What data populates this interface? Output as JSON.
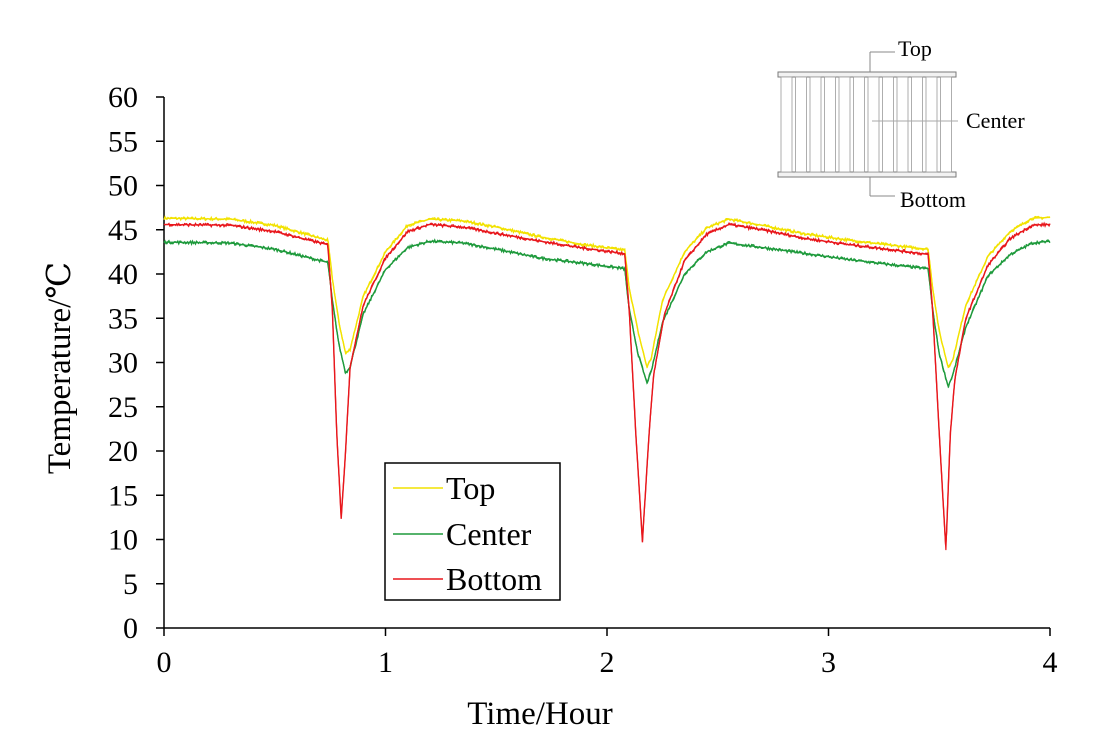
{
  "chart_data": {
    "type": "line",
    "title": "",
    "xlabel": "Time/Hour",
    "ylabel": "Temperature/℃",
    "xlim": [
      0,
      4
    ],
    "ylim": [
      0,
      60
    ],
    "xticks": [
      "0",
      "1",
      "2",
      "3",
      "4"
    ],
    "yticks": [
      "0",
      "5",
      "10",
      "15",
      "20",
      "25",
      "30",
      "35",
      "40",
      "45",
      "50",
      "55",
      "60"
    ],
    "grid": false,
    "legend_position": "bottom-left",
    "series": [
      {
        "name": "Top",
        "color": "#f2e200",
        "x": [
          0,
          0.3,
          0.5,
          0.74,
          0.76,
          0.79,
          0.82,
          0.84,
          0.9,
          1.0,
          1.1,
          1.2,
          1.35,
          1.5,
          1.7,
          1.9,
          2.08,
          2.1,
          2.14,
          2.18,
          2.2,
          2.25,
          2.35,
          2.45,
          2.55,
          2.7,
          2.9,
          3.1,
          3.3,
          3.45,
          3.47,
          3.5,
          3.54,
          3.56,
          3.62,
          3.72,
          3.82,
          3.92,
          4.0
        ],
        "y": [
          46.3,
          46.2,
          45.5,
          43.8,
          39.5,
          34.5,
          31.0,
          31.5,
          37.5,
          42.5,
          45.5,
          46.2,
          46.0,
          45.3,
          44.2,
          43.3,
          42.7,
          38.5,
          33.5,
          29.5,
          30.5,
          37.0,
          42.5,
          45.2,
          46.2,
          45.5,
          44.5,
          43.8,
          43.2,
          42.8,
          38.5,
          33.5,
          29.5,
          30.2,
          36.5,
          42.0,
          44.8,
          46.3,
          46.4
        ]
      },
      {
        "name": "Center",
        "color": "#1e9a3c",
        "x": [
          0,
          0.3,
          0.5,
          0.74,
          0.76,
          0.79,
          0.82,
          0.84,
          0.9,
          1.0,
          1.1,
          1.2,
          1.35,
          1.5,
          1.7,
          1.9,
          2.08,
          2.1,
          2.14,
          2.18,
          2.2,
          2.25,
          2.35,
          2.45,
          2.55,
          2.7,
          2.9,
          3.1,
          3.3,
          3.45,
          3.47,
          3.5,
          3.54,
          3.56,
          3.62,
          3.72,
          3.82,
          3.92,
          4.0
        ],
        "y": [
          43.6,
          43.5,
          42.8,
          41.3,
          37.0,
          32.0,
          28.8,
          29.5,
          35.5,
          40.5,
          43.0,
          43.7,
          43.5,
          42.8,
          41.8,
          41.2,
          40.6,
          36.0,
          31.0,
          27.7,
          29.0,
          34.5,
          40.0,
          42.5,
          43.5,
          43.0,
          42.3,
          41.6,
          41.0,
          40.6,
          36.0,
          31.0,
          27.3,
          28.5,
          34.0,
          39.8,
          42.2,
          43.5,
          43.7
        ]
      },
      {
        "name": "Bottom",
        "color": "#e8171c",
        "x": [
          0,
          0.3,
          0.5,
          0.74,
          0.76,
          0.78,
          0.8,
          0.82,
          0.84,
          0.9,
          1.0,
          1.1,
          1.2,
          1.35,
          1.5,
          1.7,
          1.9,
          2.08,
          2.1,
          2.13,
          2.16,
          2.19,
          2.21,
          2.26,
          2.35,
          2.45,
          2.55,
          2.7,
          2.9,
          3.1,
          3.3,
          3.45,
          3.47,
          3.5,
          3.53,
          3.55,
          3.57,
          3.62,
          3.72,
          3.82,
          3.92,
          4.0
        ],
        "y": [
          45.6,
          45.5,
          44.8,
          43.3,
          36.0,
          22.0,
          12.5,
          20.0,
          29.5,
          36.5,
          41.8,
          44.8,
          45.6,
          45.3,
          44.6,
          43.7,
          42.9,
          42.3,
          36.0,
          22.0,
          9.8,
          22.0,
          28.5,
          35.5,
          41.5,
          44.5,
          45.6,
          45.0,
          44.0,
          43.3,
          42.7,
          42.2,
          36.0,
          22.0,
          8.8,
          22.0,
          28.0,
          35.0,
          41.0,
          44.0,
          45.5,
          45.6
        ]
      }
    ],
    "inset": {
      "labels": {
        "top": "Top",
        "center": "Center",
        "bottom": "Bottom"
      }
    }
  }
}
